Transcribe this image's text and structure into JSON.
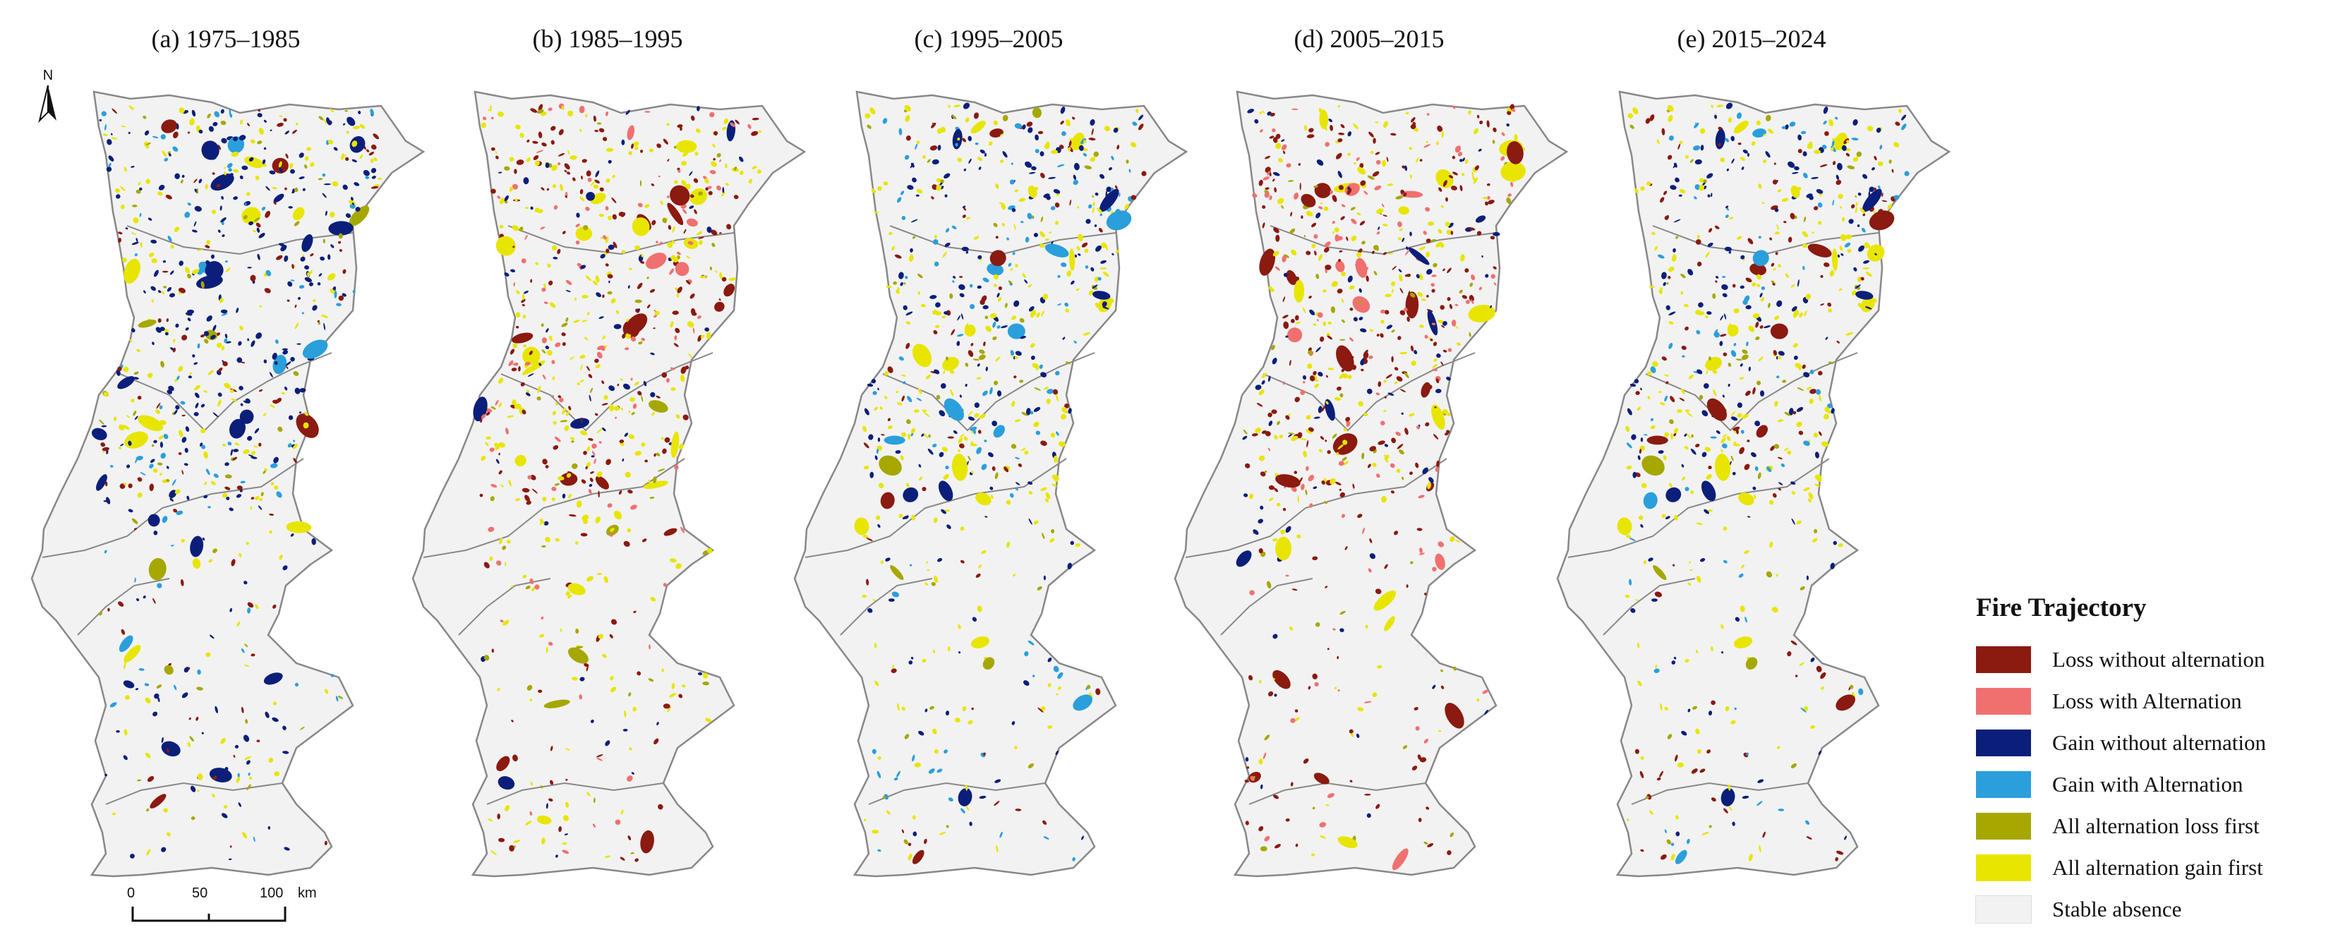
{
  "panels": [
    {
      "title": "(a) 1975–1985",
      "dominant": [
        "#0b1f7a",
        "#e8e600",
        "#8b1a10",
        "#2a9fdc",
        "#a6a800"
      ]
    },
    {
      "title": "(b) 1985–1995",
      "dominant": [
        "#e8e600",
        "#8b1a10",
        "#f07070",
        "#0b1f7a",
        "#a6a800"
      ]
    },
    {
      "title": "(c) 1995–2005",
      "dominant": [
        "#e8e600",
        "#0b1f7a",
        "#2a9fdc",
        "#8b1a10",
        "#a6a800"
      ]
    },
    {
      "title": "(d) 2005–2015",
      "dominant": [
        "#8b1a10",
        "#e8e600",
        "#f07070",
        "#0b1f7a",
        "#a6a800"
      ]
    },
    {
      "title": "(e) 2015–2024",
      "dominant": [
        "#e8e600",
        "#0b1f7a",
        "#8b1a10",
        "#2a9fdc",
        "#a6a800"
      ]
    }
  ],
  "legend": {
    "title": "Fire Trajectory",
    "items": [
      {
        "label": "Loss without alternation",
        "color": "#8b1a10"
      },
      {
        "label": "Loss with Alternation",
        "color": "#f07070"
      },
      {
        "label": "Gain without alternation",
        "color": "#0b1f7a"
      },
      {
        "label": "Gain with Alternation",
        "color": "#2a9fdc"
      },
      {
        "label": "All alternation loss first",
        "color": "#a6a800"
      },
      {
        "label": "All alternation gain first",
        "color": "#e8e600"
      },
      {
        "label": "Stable absence",
        "color": "#f2f2f2"
      }
    ]
  },
  "north_label": "N",
  "scale_bar": {
    "ticks": [
      "0",
      "50",
      "100"
    ],
    "unit": "km"
  },
  "colors": {
    "land": "#f2f2f2",
    "outline": "#888888"
  }
}
